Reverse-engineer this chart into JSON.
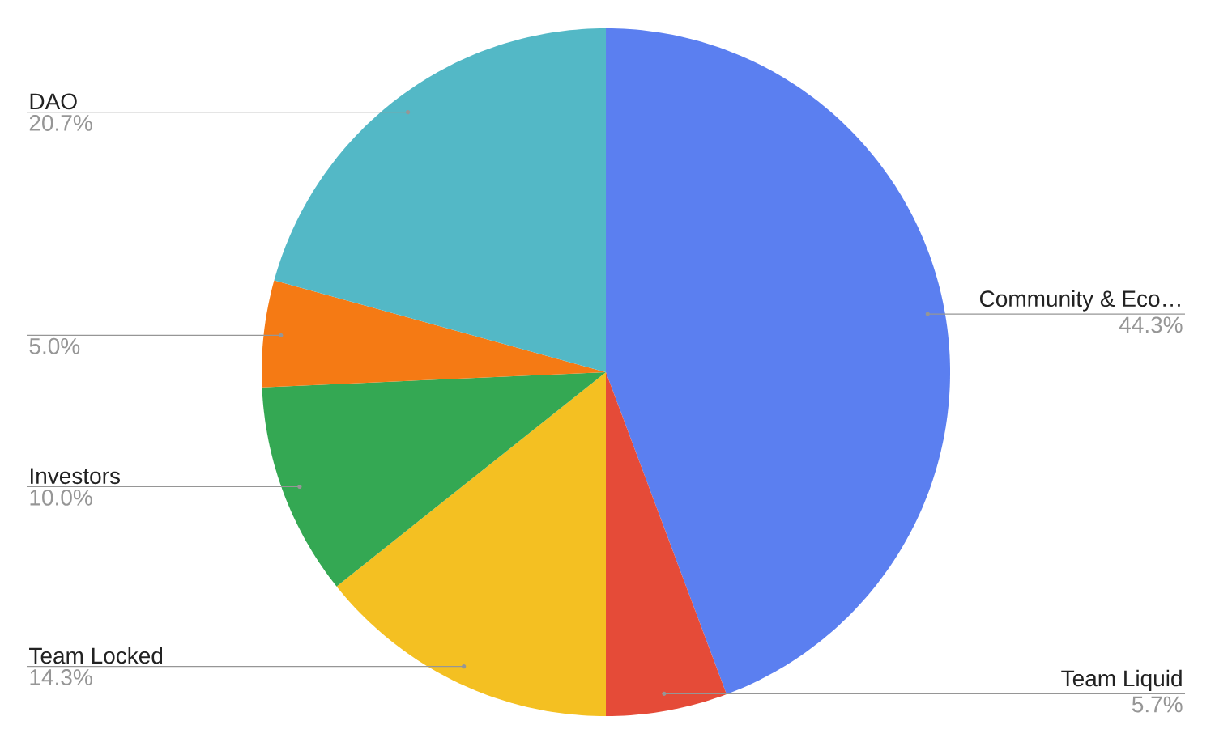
{
  "chart_data": {
    "type": "pie",
    "categories": [
      "Community & Eco…",
      "Team Liquid",
      "Team Locked",
      "Investors",
      null,
      "DAO"
    ],
    "values": [
      44.3,
      5.7,
      14.3,
      10.0,
      5.0,
      20.7
    ],
    "value_labels": [
      "44.3%",
      "5.7%",
      "14.3%",
      "10.0%",
      "5.0%",
      "20.7%"
    ],
    "colors": [
      "#5b7ff0",
      "#e54b38",
      "#f4c022",
      "#34a853",
      "#f57a14",
      "#53b8c6"
    ]
  }
}
